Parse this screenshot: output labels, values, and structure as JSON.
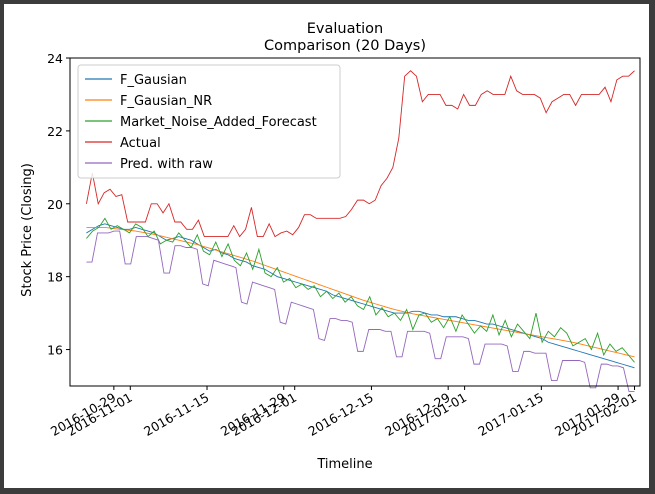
{
  "chart_data": {
    "type": "line",
    "title": "Evaluation",
    "subtitle": "Comparison (20 Days)",
    "xlabel": "Timeline",
    "ylabel": "Stock Price (Closing)",
    "ylim": [
      15.0,
      24.0
    ],
    "yticks": [
      16,
      18,
      20,
      22,
      24
    ],
    "xlim": [
      "2016-10-21",
      "2017-02-02"
    ],
    "xtick_labels": [
      {
        "date": "2016-10-29",
        "label": "2016-10-29"
      },
      {
        "date": "2016-11-01",
        "label": "2016-11-01"
      },
      {
        "date": "2016-11-15",
        "label": "2016-11-15"
      },
      {
        "date": "2016-11-29",
        "label": "2016-11-29"
      },
      {
        "date": "2016-12-01",
        "label": "2016-12-01"
      },
      {
        "date": "2016-12-15",
        "label": "2016-12-15"
      },
      {
        "date": "2016-12-29",
        "label": "2016-12-29"
      },
      {
        "date": "2017-01-01",
        "label": "2017-01-01"
      },
      {
        "date": "2017-01-15",
        "label": "2017-01-15"
      },
      {
        "date": "2017-01-29",
        "label": "2017-01-29"
      },
      {
        "date": "2017-02-01",
        "label": "2017-02-01"
      }
    ],
    "grid": false,
    "legend": "top-left",
    "x_start": "2016-10-24",
    "x_end": "2017-02-01",
    "series": [
      {
        "name": "F_Gausian",
        "color": "#1f77b4",
        "values": [
          19.2,
          19.3,
          19.4,
          19.45,
          19.4,
          19.35,
          19.3,
          19.3,
          19.35,
          19.3,
          19.25,
          19.2,
          19.1,
          19.0,
          19.05,
          19.1,
          19.05,
          19.0,
          18.9,
          18.8,
          18.7,
          18.75,
          18.65,
          18.6,
          18.5,
          18.45,
          18.4,
          18.3,
          18.25,
          18.2,
          18.1,
          18.0,
          17.95,
          17.9,
          17.85,
          17.8,
          17.75,
          17.7,
          17.65,
          17.6,
          17.5,
          17.45,
          17.4,
          17.35,
          17.3,
          17.25,
          17.2,
          17.15,
          17.1,
          17.05,
          17.0,
          17.0,
          17.0,
          17.05,
          17.05,
          17.0,
          16.95,
          16.95,
          16.9,
          16.9,
          16.9,
          16.85,
          16.8,
          16.8,
          16.75,
          16.7,
          16.7,
          16.65,
          16.6,
          16.55,
          16.5,
          16.45,
          16.4,
          16.35,
          16.3,
          16.2,
          16.15,
          16.1,
          16.05,
          16.0,
          15.95,
          15.9,
          15.85,
          15.8,
          15.75,
          15.7,
          15.65,
          15.6,
          15.55,
          15.5
        ]
      },
      {
        "name": "F_Gausian_NR",
        "color": "#ff7f0e",
        "values": [
          19.35,
          19.35,
          19.35,
          19.35,
          19.33,
          19.31,
          19.29,
          19.27,
          19.25,
          19.22,
          19.19,
          19.16,
          19.12,
          19.08,
          19.04,
          19.0,
          18.96,
          18.92,
          18.88,
          18.83,
          18.78,
          18.73,
          18.68,
          18.63,
          18.58,
          18.53,
          18.48,
          18.43,
          18.37,
          18.31,
          18.25,
          18.19,
          18.13,
          18.07,
          18.01,
          17.95,
          17.89,
          17.83,
          17.77,
          17.71,
          17.65,
          17.59,
          17.53,
          17.47,
          17.41,
          17.35,
          17.3,
          17.25,
          17.2,
          17.15,
          17.1,
          17.06,
          17.02,
          16.98,
          16.95,
          16.92,
          16.89,
          16.86,
          16.83,
          16.8,
          16.77,
          16.74,
          16.71,
          16.68,
          16.65,
          16.62,
          16.59,
          16.56,
          16.53,
          16.5,
          16.47,
          16.44,
          16.41,
          16.38,
          16.35,
          16.32,
          16.29,
          16.26,
          16.23,
          16.2,
          16.16,
          16.12,
          16.08,
          16.04,
          16.0,
          15.96,
          15.92,
          15.88,
          15.84,
          15.8
        ]
      },
      {
        "name": "Market_Noise_Added_Forecast",
        "color": "#2ca02c",
        "values": [
          19.05,
          19.25,
          19.35,
          19.6,
          19.3,
          19.4,
          19.3,
          19.2,
          19.45,
          19.35,
          19.1,
          19.25,
          18.9,
          19.0,
          18.95,
          19.2,
          19.0,
          18.8,
          19.15,
          18.7,
          18.6,
          18.95,
          18.55,
          18.9,
          18.45,
          18.3,
          18.65,
          18.2,
          18.75,
          18.1,
          18.0,
          18.25,
          17.85,
          17.95,
          17.7,
          17.8,
          17.65,
          17.75,
          17.45,
          17.6,
          17.4,
          17.55,
          17.3,
          17.45,
          17.2,
          17.1,
          17.45,
          16.95,
          17.15,
          16.9,
          17.0,
          16.8,
          17.1,
          16.55,
          16.95,
          17.0,
          16.75,
          16.85,
          16.6,
          16.9,
          16.5,
          16.95,
          16.7,
          16.45,
          16.65,
          16.5,
          16.95,
          16.4,
          16.8,
          16.35,
          16.7,
          16.5,
          16.3,
          17.0,
          16.2,
          16.5,
          16.35,
          16.6,
          16.45,
          16.1,
          16.2,
          16.3,
          16.0,
          16.45,
          15.85,
          16.15,
          15.95,
          16.05,
          15.85,
          15.65
        ]
      },
      {
        "name": "Actual",
        "color": "#d62728",
        "values": [
          20.0,
          20.85,
          20.0,
          20.3,
          20.4,
          20.2,
          20.25,
          19.5,
          19.5,
          19.5,
          19.5,
          20.0,
          20.0,
          19.75,
          20.0,
          19.5,
          19.5,
          19.3,
          19.3,
          19.55,
          19.1,
          19.1,
          19.1,
          19.1,
          19.1,
          19.4,
          19.1,
          19.3,
          19.9,
          19.1,
          19.1,
          19.45,
          19.1,
          19.2,
          19.25,
          19.15,
          19.35,
          19.7,
          19.7,
          19.6,
          19.6,
          19.6,
          19.6,
          19.6,
          19.65,
          19.85,
          20.1,
          20.1,
          20.0,
          20.1,
          20.5,
          20.7,
          21.0,
          21.8,
          23.5,
          23.65,
          23.5,
          22.8,
          23.0,
          23.0,
          23.0,
          22.7,
          22.7,
          22.6,
          23.0,
          22.7,
          22.7,
          23.0,
          23.1,
          23.0,
          23.0,
          23.0,
          23.5,
          23.1,
          23.0,
          23.0,
          23.0,
          22.9,
          22.5,
          22.8,
          22.9,
          23.0,
          23.0,
          22.7,
          23.0,
          23.0,
          23.0,
          23.0,
          23.2,
          22.8,
          23.4,
          23.5,
          23.5,
          23.65
        ]
      },
      {
        "name": "Pred. with raw",
        "color": "#9467bd",
        "values": [
          18.4,
          18.4,
          19.2,
          19.2,
          19.2,
          19.25,
          19.25,
          18.35,
          18.35,
          19.1,
          19.1,
          19.1,
          19.05,
          19.0,
          18.1,
          18.1,
          18.85,
          18.85,
          18.8,
          18.8,
          18.75,
          17.8,
          17.75,
          18.45,
          18.4,
          18.35,
          18.3,
          18.25,
          17.3,
          17.25,
          17.85,
          17.8,
          17.75,
          17.7,
          17.65,
          16.75,
          16.7,
          17.3,
          17.25,
          17.2,
          17.15,
          17.1,
          16.3,
          16.25,
          16.85,
          16.85,
          16.8,
          16.8,
          16.75,
          15.95,
          15.95,
          16.55,
          16.55,
          16.55,
          16.5,
          16.5,
          15.8,
          15.8,
          16.5,
          16.5,
          16.5,
          16.5,
          16.45,
          15.75,
          15.75,
          16.35,
          16.35,
          16.35,
          16.35,
          16.3,
          15.6,
          15.6,
          16.15,
          16.15,
          16.15,
          16.15,
          16.1,
          15.4,
          15.4,
          15.95,
          15.95,
          15.9,
          15.9,
          15.9,
          15.15,
          15.15,
          15.7,
          15.7,
          15.7,
          15.7,
          15.65,
          14.95,
          14.95,
          15.6,
          15.6,
          15.55,
          15.55,
          15.5,
          14.85,
          14.85
        ]
      }
    ]
  }
}
